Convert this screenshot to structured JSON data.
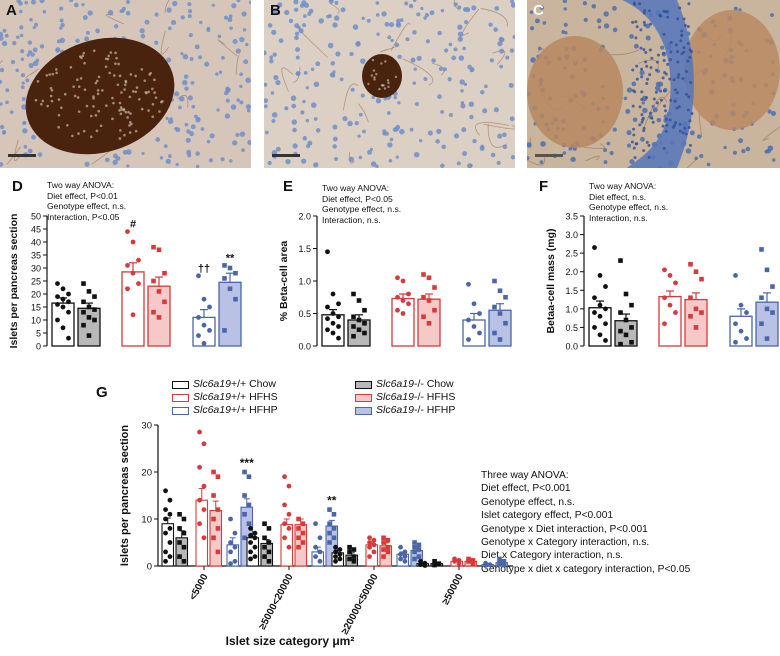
{
  "panels": {
    "A": "A",
    "B": "B",
    "C": "C",
    "D": "D",
    "E": "E",
    "F": "F",
    "G": "G"
  },
  "colors": {
    "wt_chow": "#111111",
    "ko_chow": "#111111",
    "ko_chow_fill": "#b8b8b8",
    "wt_hfhs": "#d63a3a",
    "ko_hfhs_fill": "#f6c9c9",
    "wt_hfhp": "#4a66a8",
    "ko_hfhp_fill": "#b9c2e4",
    "stain_dark": "#4a230f",
    "tissue": "#d6c6b9",
    "nuclei": "#6f8ec9"
  },
  "annotations": {
    "D": [
      "Two way ANOVA:",
      "Diet effect, P<0.01",
      "Genotype effect, n.s.",
      "Interaction, P<0.05"
    ],
    "E": [
      "Two way ANOVA:",
      "Diet effect, P<0.05",
      "Genotype effect, n.s.",
      "Interaction, n.s."
    ],
    "F": [
      "Two way ANOVA:",
      "Diet effect, n.s.",
      "Genotype effect, n.s.",
      "Interaction, n.s."
    ],
    "G": [
      "Three way ANOVA:",
      "Diet effect, P<0.001",
      "Genotype effect, n.s.",
      "Islet category effect, P<0.001",
      "Genotype x Diet interaction, P<0.001",
      "Genotype x Category interaction, n.s.",
      "Diet x Category interaction, n.s.",
      "Genotype x diet x category interaction, P<0.05"
    ]
  },
  "legend": [
    {
      "gene": "Slc6a19",
      "genotype": "+/+",
      "diet": "Chow",
      "key": "wt_chow"
    },
    {
      "gene": "Slc6a19",
      "genotype": "-/-",
      "diet": "Chow",
      "key": "ko_chow"
    },
    {
      "gene": "Slc6a19",
      "genotype": "+/+",
      "diet": "HFHS",
      "key": "wt_hfhs"
    },
    {
      "gene": "Slc6a19",
      "genotype": "-/-",
      "diet": "HFHS",
      "key": "ko_hfhs"
    },
    {
      "gene": "Slc6a19",
      "genotype": "+/+",
      "diet": "HFHP",
      "key": "wt_hfhp"
    },
    {
      "gene": "Slc6a19",
      "genotype": "-/-",
      "diet": "HFHP",
      "key": "ko_hfhp"
    }
  ],
  "chart_data": [
    {
      "panel": "D",
      "type": "bar",
      "ylabel": "Islets per pancreas section",
      "ylim": [
        0,
        50
      ],
      "yticks": [
        0,
        5,
        10,
        15,
        20,
        25,
        30,
        35,
        40,
        45,
        50
      ],
      "bars": [
        {
          "group": "wt_chow",
          "mean": 16.5,
          "sem": 2.0,
          "points": [
            24,
            22,
            20,
            19,
            18,
            17,
            16,
            15,
            13,
            10,
            7,
            3
          ],
          "marker": "circle"
        },
        {
          "group": "ko_chow",
          "mean": 14.5,
          "sem": 2.0,
          "points": [
            24,
            21,
            19,
            17,
            15,
            14,
            13,
            11,
            10,
            8,
            4
          ],
          "marker": "square"
        },
        {
          "group": "wt_hfhs",
          "mean": 28.5,
          "sem": 3.5,
          "points": [
            44,
            40,
            33,
            31,
            28,
            24,
            22,
            12
          ],
          "marker": "circle",
          "sig": "#"
        },
        {
          "group": "ko_hfhs",
          "mean": 23.0,
          "sem": 3.5,
          "points": [
            38,
            37,
            28,
            25,
            21,
            17,
            13,
            11
          ],
          "marker": "square"
        },
        {
          "group": "wt_hfhp",
          "mean": 11.0,
          "sem": 3.0,
          "points": [
            27,
            18,
            15,
            11,
            8,
            6,
            4,
            1
          ],
          "marker": "circle",
          "sig": "††"
        },
        {
          "group": "ko_hfhp",
          "mean": 24.5,
          "sem": 3.5,
          "points": [
            31,
            30,
            28,
            26,
            22,
            18,
            6
          ],
          "marker": "square",
          "sig": "**"
        }
      ]
    },
    {
      "panel": "E",
      "type": "bar",
      "ylabel": "% Beta-cell area",
      "ylim": [
        0,
        2.0
      ],
      "yticks": [
        0.0,
        0.5,
        1.0,
        1.5,
        2.0
      ],
      "bars": [
        {
          "group": "wt_chow",
          "mean": 0.48,
          "sem": 0.08,
          "points": [
            1.45,
            0.8,
            0.65,
            0.6,
            0.5,
            0.45,
            0.42,
            0.35,
            0.3,
            0.25,
            0.2,
            0.12
          ],
          "marker": "circle"
        },
        {
          "group": "ko_chow",
          "mean": 0.4,
          "sem": 0.08,
          "points": [
            0.8,
            0.7,
            0.55,
            0.45,
            0.4,
            0.35,
            0.3,
            0.25,
            0.2,
            0.15
          ],
          "marker": "square"
        },
        {
          "group": "wt_hfhs",
          "mean": 0.73,
          "sem": 0.07,
          "points": [
            1.05,
            1.0,
            0.8,
            0.75,
            0.7,
            0.65,
            0.55,
            0.5
          ],
          "marker": "circle"
        },
        {
          "group": "ko_hfhs",
          "mean": 0.72,
          "sem": 0.08,
          "points": [
            1.1,
            1.05,
            0.9,
            0.75,
            0.7,
            0.55,
            0.45,
            0.35
          ],
          "marker": "square"
        },
        {
          "group": "wt_hfhp",
          "mean": 0.4,
          "sem": 0.1,
          "points": [
            0.95,
            0.65,
            0.5,
            0.4,
            0.3,
            0.2,
            0.1
          ],
          "marker": "circle"
        },
        {
          "group": "ko_hfhp",
          "mean": 0.55,
          "sem": 0.1,
          "points": [
            1.0,
            0.85,
            0.75,
            0.6,
            0.5,
            0.35,
            0.2,
            0.1
          ],
          "marker": "square"
        }
      ]
    },
    {
      "panel": "F",
      "type": "bar",
      "ylabel": "Betaa-cell mass (mg)",
      "ylim": [
        0,
        3.5
      ],
      "yticks": [
        0.0,
        0.5,
        1.0,
        1.5,
        2.0,
        2.5,
        3.0,
        3.5
      ],
      "bars": [
        {
          "group": "wt_chow",
          "mean": 1.03,
          "sem": 0.18,
          "points": [
            2.65,
            1.9,
            1.6,
            1.3,
            1.1,
            1.0,
            0.9,
            0.8,
            0.6,
            0.5,
            0.3,
            0.15
          ],
          "marker": "circle"
        },
        {
          "group": "ko_chow",
          "mean": 0.68,
          "sem": 0.18,
          "points": [
            2.3,
            1.4,
            1.1,
            0.9,
            0.7,
            0.5,
            0.4,
            0.3,
            0.1,
            0.05
          ],
          "marker": "square"
        },
        {
          "group": "wt_hfhs",
          "mean": 1.33,
          "sem": 0.15,
          "points": [
            2.05,
            1.9,
            1.7,
            1.3,
            1.1,
            0.9,
            0.6
          ],
          "marker": "circle"
        },
        {
          "group": "ko_hfhs",
          "mean": 1.25,
          "sem": 0.18,
          "points": [
            2.2,
            2.0,
            1.8,
            1.3,
            1.0,
            0.9,
            0.8,
            0.5
          ],
          "marker": "square"
        },
        {
          "group": "wt_hfhp",
          "mean": 0.8,
          "sem": 0.2,
          "points": [
            1.9,
            1.1,
            0.9,
            0.6,
            0.4,
            0.2,
            0.1
          ],
          "marker": "circle"
        },
        {
          "group": "ko_hfhp",
          "mean": 1.18,
          "sem": 0.25,
          "points": [
            2.6,
            2.05,
            1.6,
            1.3,
            1.0,
            0.9,
            0.6,
            0.2
          ],
          "marker": "square"
        }
      ]
    },
    {
      "panel": "G",
      "type": "bar",
      "ylabel": "Islets per pancreas section",
      "xlabel": "Islet size category μm²",
      "ylim": [
        0,
        30
      ],
      "yticks": [
        0,
        10,
        20,
        30
      ],
      "categories": [
        "<5000",
        "≥5000<20000",
        "≥20000<50000",
        "≥50000"
      ],
      "series": [
        {
          "group": "wt_chow",
          "values": [
            9.0,
            6.0,
            2.8,
            0.5
          ],
          "sem": [
            1.2,
            0.8,
            0.5,
            0.2
          ],
          "marker": "circle",
          "points": [
            [
              16,
              14,
              12,
              11,
              10,
              8,
              7,
              5,
              3,
              2,
              1
            ],
            [
              8,
              7,
              6.5,
              6,
              5,
              4,
              3,
              2,
              1.5
            ],
            [
              4,
              3.5,
              3,
              2.5,
              2,
              1.5,
              1
            ],
            [
              1,
              0.6,
              0.3,
              0.1
            ]
          ]
        },
        {
          "group": "ko_chow",
          "values": [
            6.0,
            4.8,
            2.3,
            0.5
          ],
          "sem": [
            1.5,
            0.8,
            0.5,
            0.2
          ],
          "marker": "square",
          "points": [
            [
              11,
              10,
              8,
              7,
              5,
              4,
              2,
              1
            ],
            [
              9,
              8,
              6,
              5,
              4,
              3,
              2,
              1
            ],
            [
              4,
              3.5,
              3,
              2,
              1.5,
              1
            ],
            [
              1,
              0.5,
              0.2
            ]
          ]
        },
        {
          "group": "wt_hfhs",
          "values": [
            14.0,
            8.8,
            4.5,
            1.0
          ],
          "sem": [
            2.5,
            1.2,
            0.6,
            0.3
          ],
          "marker": "circle",
          "points": [
            [
              28.5,
              26,
              21,
              17,
              14,
              12,
              9,
              6
            ],
            [
              19,
              17,
              13,
              11,
              9,
              8,
              6,
              4
            ],
            [
              6,
              5.5,
              5,
              4.5,
              4,
              3,
              2
            ],
            [
              1.5,
              1.2,
              1,
              0.5
            ]
          ]
        },
        {
          "group": "ko_hfhs",
          "values": [
            11.8,
            8.8,
            4.3,
            1.0
          ],
          "sem": [
            2.0,
            1.2,
            0.6,
            0.3
          ],
          "marker": "square",
          "points": [
            [
              20,
              19,
              15,
              12,
              10,
              8,
              6,
              3
            ],
            [
              10,
              9,
              8,
              7,
              6,
              5,
              4
            ],
            [
              6,
              5.5,
              5,
              4,
              3.5,
              3,
              2
            ],
            [
              1.5,
              1.2,
              1,
              0.5
            ]
          ]
        },
        {
          "group": "wt_hfhp",
          "values": [
            4.5,
            3.0,
            2.5,
            0.3
          ],
          "sem": [
            1.5,
            1.0,
            0.5,
            0.2
          ],
          "marker": "circle",
          "points": [
            [
              10,
              7,
              5,
              4,
              3,
              1,
              0.5
            ],
            [
              9,
              6,
              4,
              3,
              2,
              1
            ],
            [
              4,
              3,
              2.5,
              2,
              1.5,
              1
            ],
            [
              0.6,
              0.3,
              0.1
            ]
          ]
        },
        {
          "group": "ko_hfhp",
          "values": [
            12.5,
            8.5,
            3.3,
            0.7
          ],
          "sem": [
            1.8,
            1.2,
            0.6,
            0.3
          ],
          "marker": "square",
          "points": [
            [
              20,
              19,
              15,
              13,
              11,
              9,
              6,
              5
            ],
            [
              12,
              11,
              9,
              8,
              7,
              6,
              5
            ],
            [
              5,
              4.5,
              4,
              3.5,
              3,
              2,
              1.5
            ],
            [
              1.5,
              1,
              0.6,
              0.2
            ]
          ]
        }
      ],
      "significance": [
        {
          "category": "<5000",
          "group": "ko_hfhp",
          "label": "***"
        },
        {
          "category": "≥5000<20000",
          "group": "ko_hfhp",
          "label": "**"
        }
      ]
    }
  ]
}
